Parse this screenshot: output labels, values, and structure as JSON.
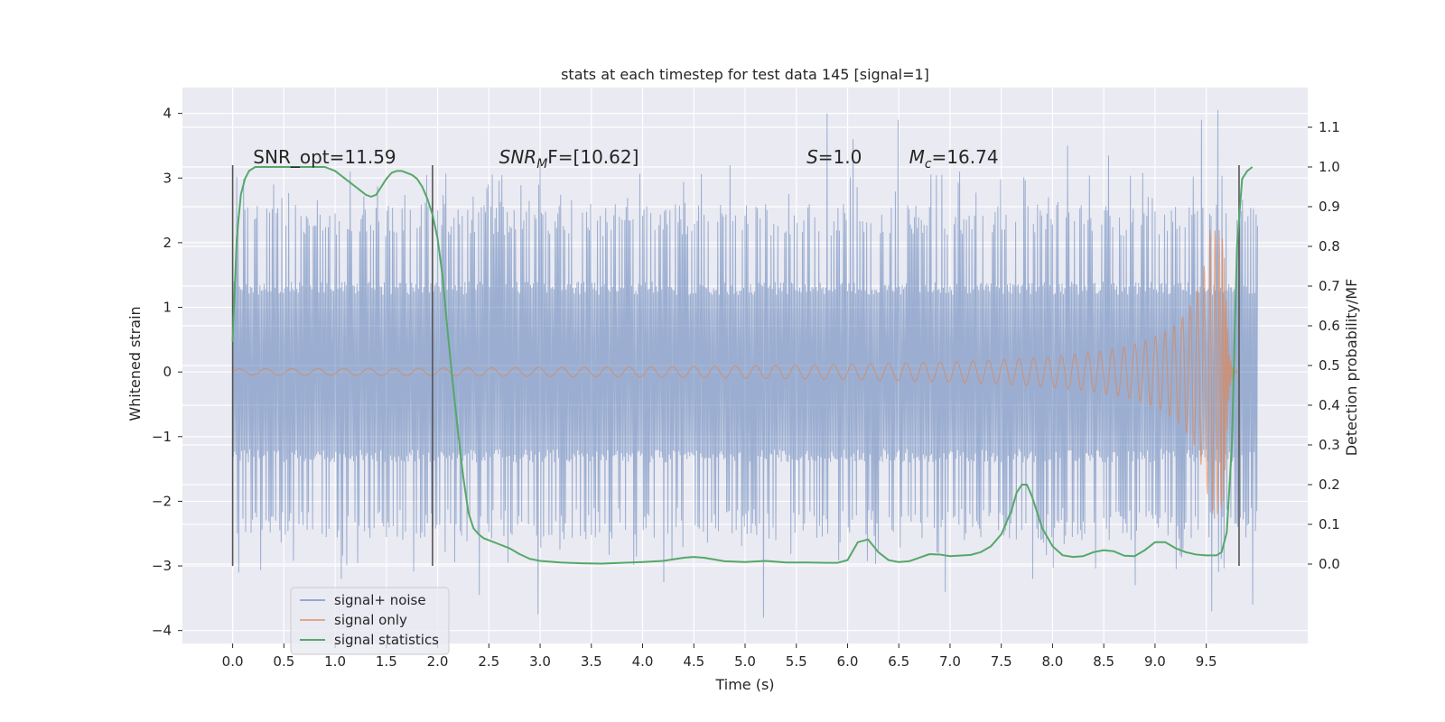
{
  "chart_data": {
    "type": "line",
    "title": "stats at each timestep for test data 145 [signal=1]",
    "xlabel": "Time (s)",
    "ylabel_left": "Whitened strain",
    "ylabel_right": "Detection probability/MF",
    "xlim": [
      -0.49,
      10.49
    ],
    "ylim_left": [
      -4.2,
      4.4
    ],
    "ylim_right": [
      -0.2,
      1.2
    ],
    "x_ticks": [
      0.0,
      0.5,
      1.0,
      1.5,
      2.0,
      2.5,
      3.0,
      3.5,
      4.0,
      4.5,
      5.0,
      5.5,
      6.0,
      6.5,
      7.0,
      7.5,
      8.0,
      8.5,
      9.0,
      9.5
    ],
    "x_tick_labels": [
      "0.0",
      "0.5",
      "1.0",
      "1.5",
      "2.0",
      "2.5",
      "3.0",
      "3.5",
      "4.0",
      "4.5",
      "5.0",
      "5.5",
      "6.0",
      "6.5",
      "7.0",
      "7.5",
      "8.0",
      "8.5",
      "9.0",
      "9.5"
    ],
    "y_left_ticks": [
      4,
      3,
      2,
      1,
      0,
      -1,
      -2,
      -3,
      -4
    ],
    "y_left_tick_labels": [
      "4",
      "3",
      "2",
      "1",
      "0",
      "−1",
      "−2",
      "−3",
      "−4"
    ],
    "y_right_ticks": [
      1.1,
      1.0,
      0.9,
      0.8,
      0.7,
      0.6,
      0.5,
      0.4,
      0.3,
      0.2,
      0.1,
      0.0
    ],
    "y_right_tick_labels": [
      "1.1",
      "1.0",
      "0.9",
      "0.8",
      "0.7",
      "0.6",
      "0.5",
      "0.4",
      "0.3",
      "0.2",
      "0.1",
      "0.0"
    ],
    "grid": true,
    "legend_position": "lower-left",
    "colors": {
      "noise": "#4c72b0",
      "signal": "#dd8452",
      "stats": "#55a868",
      "vline": "#555555",
      "background": "#eaeaf2",
      "grid": "#ffffff"
    },
    "annotations": [
      {
        "x": 0.2,
        "y": 3.2,
        "prefix": "SNR_opt=11.59",
        "sub": "",
        "suffix": ""
      },
      {
        "x": 2.6,
        "y": 3.2,
        "prefix": "SNR",
        "sub": "M",
        "suffix": "F=[10.62]"
      },
      {
        "x": 5.6,
        "y": 3.2,
        "prefix": "S",
        "sub": "",
        "suffix": "=1.0"
      },
      {
        "x": 6.6,
        "y": 3.2,
        "prefix": "M",
        "sub": "c",
        "suffix": "=16.74"
      }
    ],
    "vlines": [
      {
        "x": 0.0,
        "ymin": -3.0,
        "ymax": 3.2
      },
      {
        "x": 1.95,
        "ymin": -3.0,
        "ymax": 3.2
      },
      {
        "x": 9.82,
        "ymin": -3.0,
        "ymax": 3.2
      }
    ],
    "series": [
      {
        "name": "signal+ noise",
        "kind": "noise",
        "x_range": [
          0.0,
          10.0
        ],
        "band_core": 1.4,
        "band_mid": 2.1,
        "peaks": [
          {
            "x": 5.8,
            "y": 4.0
          },
          {
            "x": 6.05,
            "y": 3.6
          },
          {
            "x": 6.5,
            "y": 3.9
          },
          {
            "x": 9.45,
            "y": 3.9
          },
          {
            "x": 9.62,
            "y": 4.05
          },
          {
            "x": 8.15,
            "y": 3.5
          },
          {
            "x": 8.55,
            "y": 3.35
          },
          {
            "x": 3.0,
            "y": 3.2
          },
          {
            "x": 4.85,
            "y": 3.2
          },
          {
            "x": 7.1,
            "y": 3.1
          },
          {
            "x": 2.5,
            "y": 2.9
          },
          {
            "x": 1.15,
            "y": 3.1
          }
        ],
        "troughs": [
          {
            "x": 5.18,
            "y": -3.8
          },
          {
            "x": 2.98,
            "y": -3.75
          },
          {
            "x": 9.55,
            "y": -3.7
          },
          {
            "x": 9.95,
            "y": -3.6
          },
          {
            "x": 6.95,
            "y": -3.4
          },
          {
            "x": 2.4,
            "y": -3.45
          },
          {
            "x": 8.8,
            "y": -3.3
          },
          {
            "x": 4.2,
            "y": -3.25
          },
          {
            "x": 0.05,
            "y": -3.1
          },
          {
            "x": 1.05,
            "y": -3.2
          },
          {
            "x": 7.8,
            "y": -3.2
          }
        ]
      },
      {
        "name": "signal only",
        "kind": "chirp",
        "x_range": [
          0.0,
          9.8
        ],
        "merger_time": 9.68,
        "peak_amplitude": 2.2,
        "min_amplitude": 0.05
      },
      {
        "name": "signal statistics",
        "kind": "line",
        "axis": "right",
        "x": [
          0.0,
          0.04,
          0.08,
          0.12,
          0.16,
          0.22,
          0.3,
          0.5,
          0.7,
          0.9,
          1.0,
          1.1,
          1.2,
          1.3,
          1.35,
          1.4,
          1.45,
          1.5,
          1.55,
          1.6,
          1.65,
          1.7,
          1.75,
          1.8,
          1.85,
          1.9,
          1.95,
          2.0,
          2.05,
          2.1,
          2.15,
          2.2,
          2.25,
          2.3,
          2.35,
          2.4,
          2.45,
          2.5,
          2.6,
          2.7,
          2.8,
          2.9,
          3.0,
          3.2,
          3.4,
          3.6,
          3.8,
          4.0,
          4.2,
          4.4,
          4.5,
          4.6,
          4.8,
          5.0,
          5.2,
          5.4,
          5.6,
          5.8,
          5.9,
          6.0,
          6.1,
          6.2,
          6.3,
          6.4,
          6.5,
          6.6,
          6.7,
          6.8,
          6.9,
          7.0,
          7.2,
          7.3,
          7.4,
          7.5,
          7.6,
          7.65,
          7.7,
          7.75,
          7.8,
          7.9,
          8.0,
          8.1,
          8.2,
          8.3,
          8.4,
          8.5,
          8.6,
          8.7,
          8.8,
          8.9,
          9.0,
          9.1,
          9.2,
          9.3,
          9.4,
          9.5,
          9.6,
          9.65,
          9.7,
          9.75,
          9.8,
          9.85,
          9.9,
          9.95
        ],
        "y": [
          0.56,
          0.82,
          0.93,
          0.97,
          0.99,
          1.0,
          1.0,
          1.0,
          1.0,
          1.0,
          0.99,
          0.97,
          0.95,
          0.93,
          0.925,
          0.93,
          0.95,
          0.97,
          0.985,
          0.99,
          0.99,
          0.985,
          0.98,
          0.97,
          0.95,
          0.92,
          0.88,
          0.82,
          0.72,
          0.58,
          0.45,
          0.33,
          0.22,
          0.13,
          0.09,
          0.075,
          0.065,
          0.06,
          0.05,
          0.04,
          0.025,
          0.013,
          0.008,
          0.004,
          0.002,
          0.001,
          0.003,
          0.005,
          0.008,
          0.016,
          0.018,
          0.016,
          0.007,
          0.005,
          0.008,
          0.004,
          0.004,
          0.003,
          0.003,
          0.01,
          0.055,
          0.062,
          0.03,
          0.01,
          0.005,
          0.007,
          0.016,
          0.025,
          0.024,
          0.02,
          0.023,
          0.03,
          0.045,
          0.075,
          0.135,
          0.18,
          0.2,
          0.2,
          0.17,
          0.09,
          0.045,
          0.022,
          0.018,
          0.02,
          0.03,
          0.035,
          0.032,
          0.021,
          0.02,
          0.035,
          0.055,
          0.055,
          0.04,
          0.03,
          0.024,
          0.022,
          0.022,
          0.03,
          0.08,
          0.3,
          0.8,
          0.97,
          0.99,
          1.0
        ]
      }
    ],
    "legend": [
      {
        "label": "signal+ noise",
        "kind": "noise"
      },
      {
        "label": "signal only",
        "kind": "signal"
      },
      {
        "label": "signal statistics",
        "kind": "stats"
      }
    ]
  }
}
